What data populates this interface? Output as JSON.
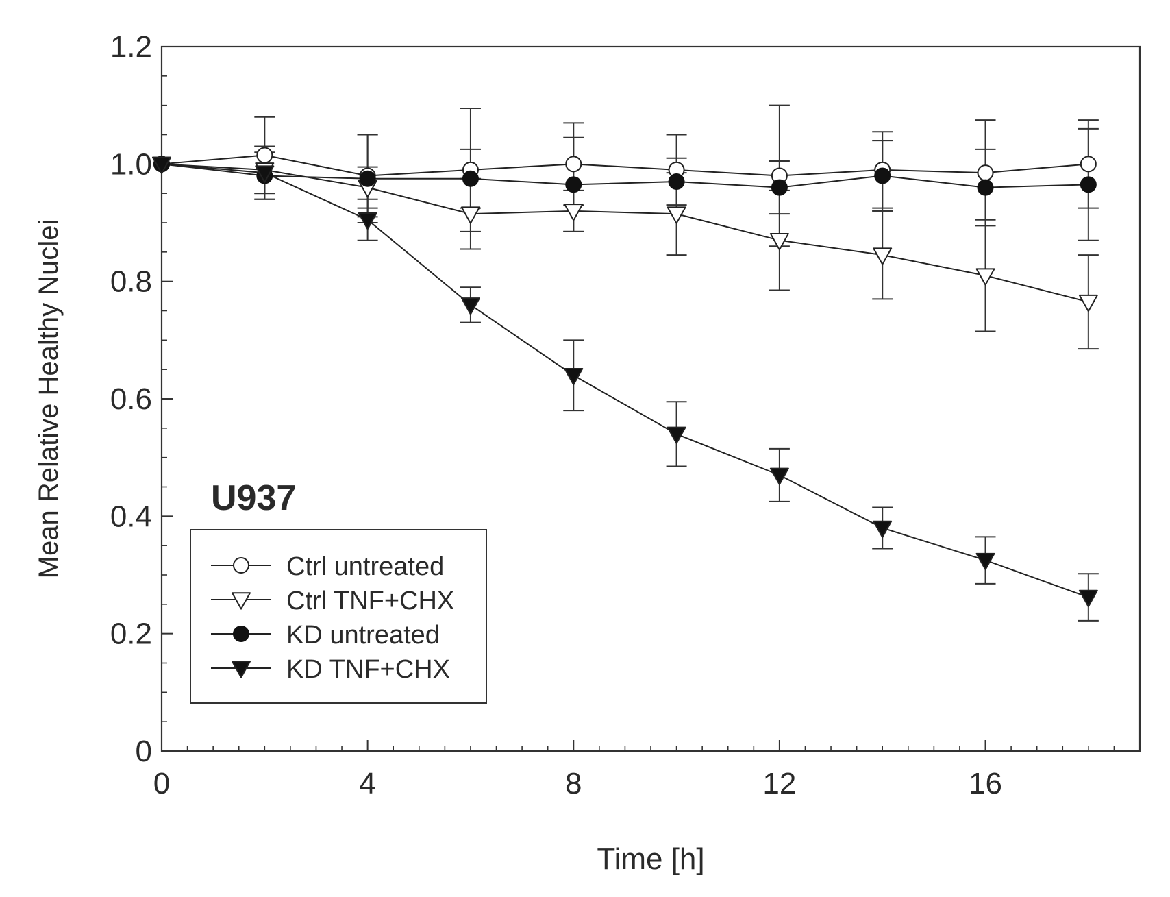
{
  "chart_data": {
    "type": "line",
    "panel_label": "U937",
    "xlabel": "Time [h]",
    "ylabel": "Mean Relative Healthy Nuclei",
    "xlim": [
      0,
      19
    ],
    "ylim": [
      0,
      1.2
    ],
    "x_ticks": [
      0,
      4,
      8,
      12,
      16
    ],
    "x_tick_labels": [
      "0",
      "4",
      "8",
      "12",
      "16"
    ],
    "x_minor_tick_step": 0.5,
    "y_ticks": [
      0,
      0.2,
      0.4,
      0.6,
      0.8,
      1.0,
      1.2
    ],
    "y_tick_labels": [
      "0",
      "0.2",
      "0.4",
      "0.6",
      "0.8",
      "1.0",
      "1.2"
    ],
    "y_minor_tick_step": 0.05,
    "legend_position": "lower-left",
    "x": [
      0,
      2,
      4,
      6,
      8,
      10,
      12,
      14,
      16,
      18
    ],
    "series": [
      {
        "name": "Ctrl untreated",
        "marker": "circle-open",
        "values": [
          1.0,
          1.015,
          0.98,
          0.99,
          1.0,
          0.99,
          0.98,
          0.99,
          0.985,
          1.0
        ],
        "errors": [
          0,
          0.065,
          0.07,
          0.105,
          0.07,
          0.06,
          0.12,
          0.065,
          0.09,
          0.075
        ]
      },
      {
        "name": "Ctrl TNF+CHX",
        "marker": "triangle-down-open",
        "values": [
          1.0,
          0.99,
          0.96,
          0.915,
          0.92,
          0.915,
          0.87,
          0.845,
          0.81,
          0.765
        ],
        "errors": [
          0,
          0.04,
          0.035,
          0.06,
          0.035,
          0.07,
          0.085,
          0.075,
          0.095,
          0.08
        ]
      },
      {
        "name": "KD untreated",
        "marker": "circle-filled",
        "values": [
          1.0,
          0.98,
          0.975,
          0.975,
          0.965,
          0.97,
          0.96,
          0.98,
          0.96,
          0.965
        ],
        "errors": [
          0,
          0.04,
          0.075,
          0.05,
          0.08,
          0.04,
          0.045,
          0.06,
          0.065,
          0.095
        ]
      },
      {
        "name": "KD TNF+CHX",
        "marker": "triangle-down-filled",
        "values": [
          1.0,
          0.985,
          0.905,
          0.76,
          0.64,
          0.54,
          0.47,
          0.38,
          0.325,
          0.262
        ],
        "errors": [
          0,
          0.045,
          0.035,
          0.03,
          0.06,
          0.055,
          0.045,
          0.035,
          0.04,
          0.04
        ]
      }
    ]
  }
}
